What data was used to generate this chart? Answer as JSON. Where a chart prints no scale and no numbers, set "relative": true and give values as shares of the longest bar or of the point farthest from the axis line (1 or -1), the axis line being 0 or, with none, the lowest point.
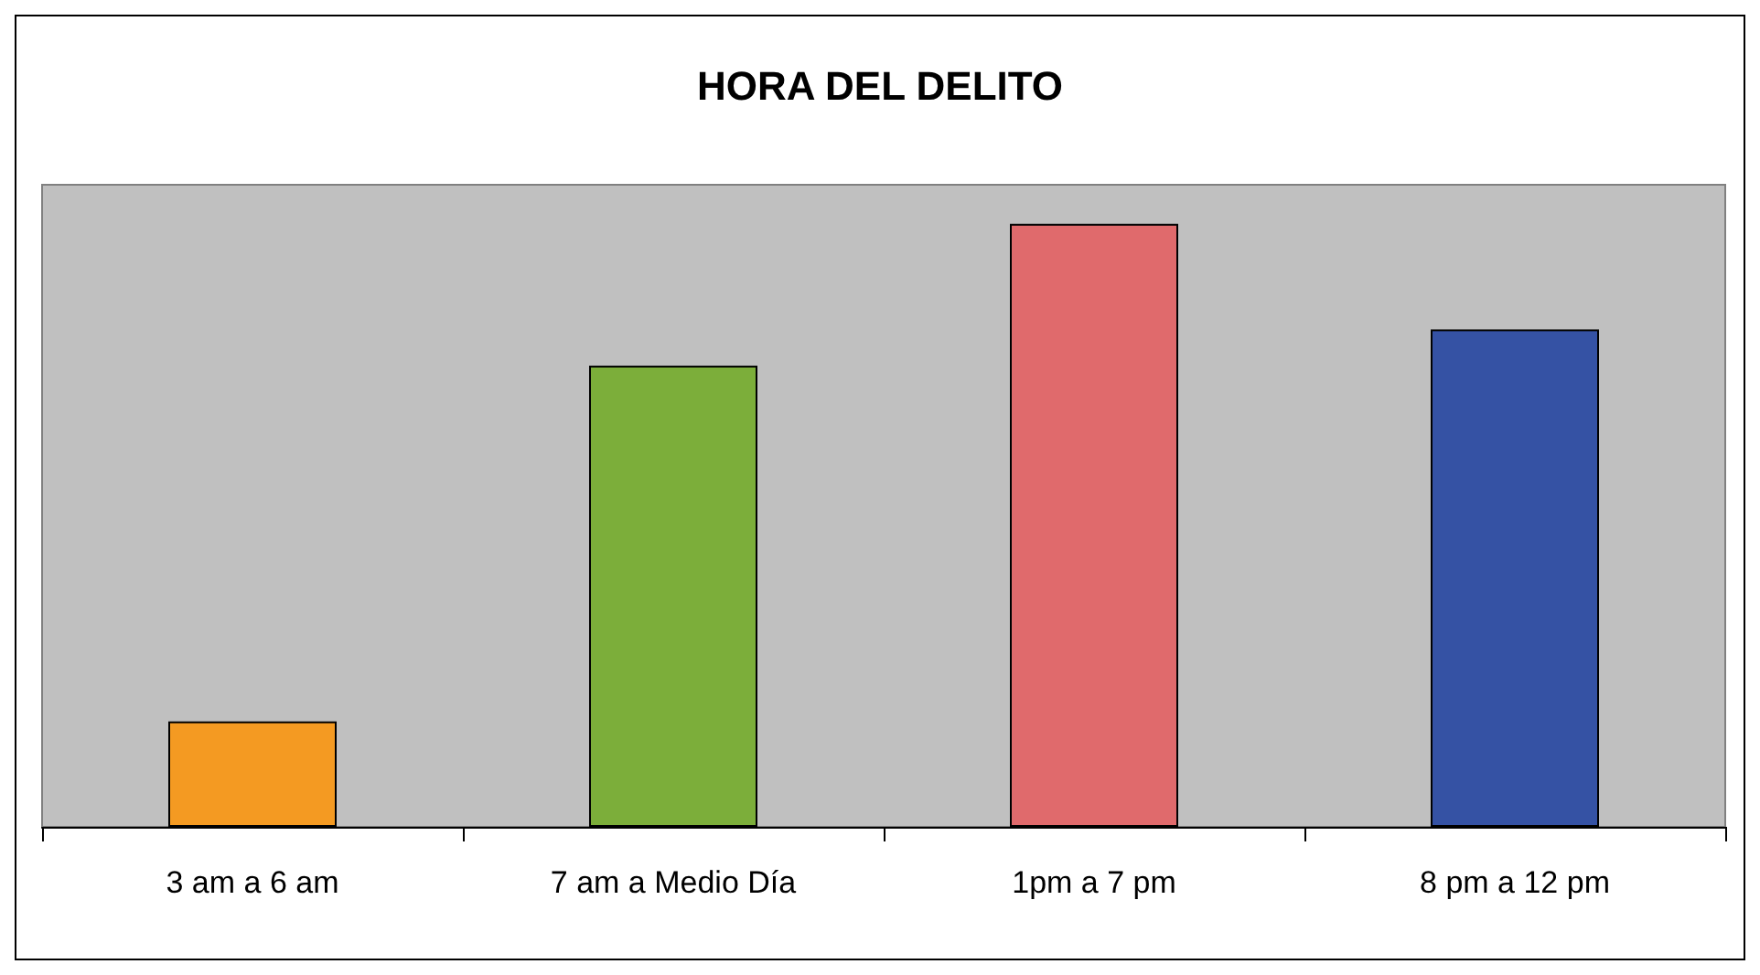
{
  "chart_data": {
    "type": "bar",
    "title": "HORA DEL DELITO",
    "relative": true,
    "categories": [
      "3 am a 6 am",
      "7 am a Medio Día",
      "1pm a 7 pm",
      "8 pm a 12 pm"
    ],
    "values": [
      0.175,
      0.765,
      1,
      0.825
    ],
    "colors": [
      "#f49a22",
      "#7cae3a",
      "#e06a6c",
      "#3552a4"
    ]
  }
}
